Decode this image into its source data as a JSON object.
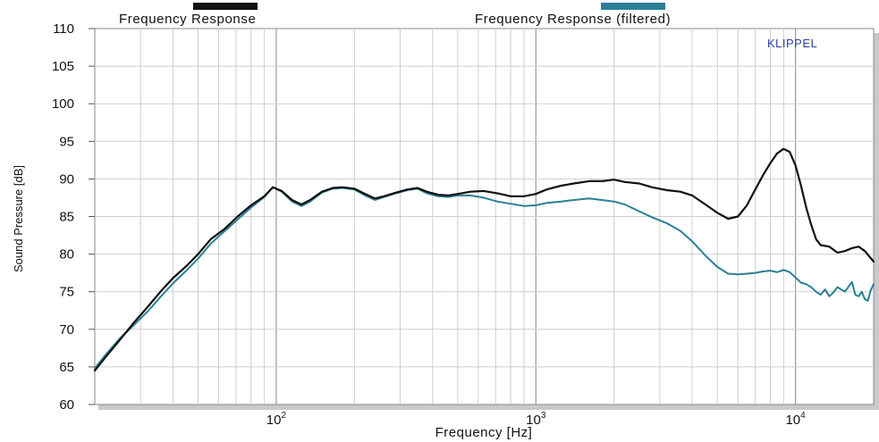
{
  "chart_data": {
    "type": "line",
    "xlabel": "Frequency  [Hz]",
    "ylabel": "Sound Pressure  [dB]",
    "x_scale": "log",
    "xlim": [
      20,
      20000
    ],
    "ylim": [
      60,
      110
    ],
    "y_ticks": [
      60,
      65,
      70,
      75,
      80,
      85,
      90,
      95,
      100,
      105,
      110
    ],
    "x_ticks": [
      {
        "base": "10",
        "exp": "2",
        "value": 100
      },
      {
        "base": "10",
        "exp": "3",
        "value": 1000
      },
      {
        "base": "10",
        "exp": "4",
        "value": 10000
      }
    ],
    "grid": true,
    "brand": "KLIPPEL",
    "series": [
      {
        "name": "Frequency Response",
        "color": "#111111",
        "points": [
          [
            20,
            64.5
          ],
          [
            22,
            66.3
          ],
          [
            25,
            68.6
          ],
          [
            28,
            70.7
          ],
          [
            32,
            73.0
          ],
          [
            36,
            75.1
          ],
          [
            40,
            76.8
          ],
          [
            45,
            78.4
          ],
          [
            50,
            80.0
          ],
          [
            56,
            82.0
          ],
          [
            63,
            83.3
          ],
          [
            71,
            85.0
          ],
          [
            80,
            86.5
          ],
          [
            90,
            87.7
          ],
          [
            97,
            88.9
          ],
          [
            105,
            88.4
          ],
          [
            115,
            87.2
          ],
          [
            125,
            86.6
          ],
          [
            135,
            87.2
          ],
          [
            150,
            88.3
          ],
          [
            165,
            88.8
          ],
          [
            180,
            88.9
          ],
          [
            200,
            88.7
          ],
          [
            220,
            88.0
          ],
          [
            240,
            87.4
          ],
          [
            260,
            87.7
          ],
          [
            290,
            88.2
          ],
          [
            320,
            88.6
          ],
          [
            350,
            88.8
          ],
          [
            380,
            88.3
          ],
          [
            420,
            87.9
          ],
          [
            460,
            87.8
          ],
          [
            500,
            88.0
          ],
          [
            560,
            88.3
          ],
          [
            630,
            88.4
          ],
          [
            710,
            88.1
          ],
          [
            800,
            87.7
          ],
          [
            900,
            87.7
          ],
          [
            1000,
            88.0
          ],
          [
            1100,
            88.6
          ],
          [
            1250,
            89.1
          ],
          [
            1400,
            89.4
          ],
          [
            1600,
            89.7
          ],
          [
            1800,
            89.7
          ],
          [
            2000,
            89.9
          ],
          [
            2200,
            89.6
          ],
          [
            2500,
            89.4
          ],
          [
            2800,
            88.9
          ],
          [
            3200,
            88.5
          ],
          [
            3600,
            88.3
          ],
          [
            4000,
            87.8
          ],
          [
            4500,
            86.6
          ],
          [
            5000,
            85.5
          ],
          [
            5500,
            84.7
          ],
          [
            6000,
            85.0
          ],
          [
            6500,
            86.5
          ],
          [
            7000,
            88.6
          ],
          [
            7500,
            90.5
          ],
          [
            8000,
            92.1
          ],
          [
            8500,
            93.4
          ],
          [
            9000,
            94.0
          ],
          [
            9500,
            93.6
          ],
          [
            10000,
            91.8
          ],
          [
            10500,
            89.1
          ],
          [
            11000,
            86.2
          ],
          [
            11500,
            83.9
          ],
          [
            12000,
            82.0
          ],
          [
            12500,
            81.2
          ],
          [
            13500,
            81.0
          ],
          [
            14500,
            80.2
          ],
          [
            15500,
            80.4
          ],
          [
            16500,
            80.8
          ],
          [
            17500,
            81.0
          ],
          [
            18500,
            80.4
          ],
          [
            20000,
            79.0
          ]
        ]
      },
      {
        "name": "Frequency Response (filtered)",
        "color": "#2b7f96",
        "points": [
          [
            20,
            64.8
          ],
          [
            22,
            66.6
          ],
          [
            25,
            68.8
          ],
          [
            28,
            70.4
          ],
          [
            32,
            72.4
          ],
          [
            36,
            74.4
          ],
          [
            40,
            76.1
          ],
          [
            45,
            77.8
          ],
          [
            50,
            79.4
          ],
          [
            56,
            81.4
          ],
          [
            63,
            83.0
          ],
          [
            71,
            84.6
          ],
          [
            80,
            86.2
          ],
          [
            90,
            87.6
          ],
          [
            97,
            88.9
          ],
          [
            105,
            88.3
          ],
          [
            115,
            87.0
          ],
          [
            125,
            86.4
          ],
          [
            135,
            87.0
          ],
          [
            150,
            88.2
          ],
          [
            165,
            88.7
          ],
          [
            180,
            88.8
          ],
          [
            200,
            88.6
          ],
          [
            220,
            87.8
          ],
          [
            240,
            87.2
          ],
          [
            260,
            87.6
          ],
          [
            290,
            88.1
          ],
          [
            320,
            88.5
          ],
          [
            350,
            88.7
          ],
          [
            380,
            88.1
          ],
          [
            420,
            87.7
          ],
          [
            460,
            87.6
          ],
          [
            500,
            87.8
          ],
          [
            560,
            87.8
          ],
          [
            630,
            87.5
          ],
          [
            710,
            87.0
          ],
          [
            800,
            86.7
          ],
          [
            900,
            86.4
          ],
          [
            1000,
            86.5
          ],
          [
            1100,
            86.8
          ],
          [
            1250,
            87.0
          ],
          [
            1400,
            87.2
          ],
          [
            1600,
            87.4
          ],
          [
            1800,
            87.2
          ],
          [
            2000,
            87.0
          ],
          [
            2200,
            86.6
          ],
          [
            2500,
            85.7
          ],
          [
            2800,
            84.9
          ],
          [
            3200,
            84.1
          ],
          [
            3600,
            83.1
          ],
          [
            4000,
            81.7
          ],
          [
            4500,
            79.8
          ],
          [
            5000,
            78.3
          ],
          [
            5500,
            77.4
          ],
          [
            6000,
            77.3
          ],
          [
            6500,
            77.4
          ],
          [
            7000,
            77.5
          ],
          [
            7500,
            77.7
          ],
          [
            8000,
            77.8
          ],
          [
            8500,
            77.6
          ],
          [
            9000,
            77.9
          ],
          [
            9500,
            77.6
          ],
          [
            10000,
            76.9
          ],
          [
            10500,
            76.2
          ],
          [
            11000,
            76.0
          ],
          [
            11500,
            75.6
          ],
          [
            12000,
            75.0
          ],
          [
            12500,
            74.6
          ],
          [
            13000,
            75.3
          ],
          [
            13500,
            74.4
          ],
          [
            14000,
            74.9
          ],
          [
            14500,
            75.6
          ],
          [
            15500,
            75.0
          ],
          [
            16500,
            76.3
          ],
          [
            17000,
            74.6
          ],
          [
            17500,
            74.4
          ],
          [
            18000,
            75.0
          ],
          [
            18500,
            74.0
          ],
          [
            19000,
            73.8
          ],
          [
            19500,
            75.2
          ],
          [
            20000,
            76.0
          ]
        ]
      }
    ]
  }
}
